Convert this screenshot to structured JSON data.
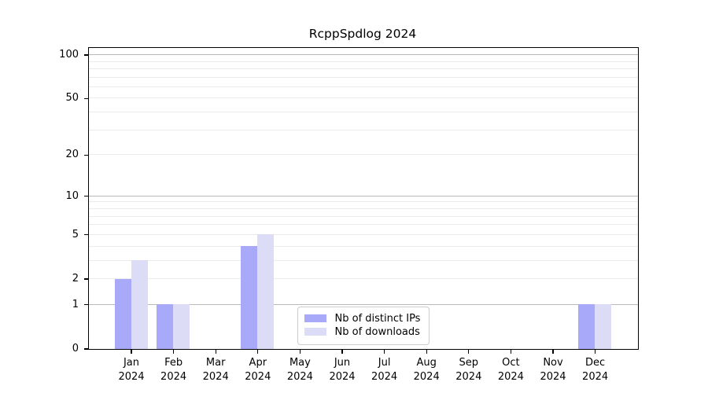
{
  "title": "RcppSpdlog 2024",
  "axes": {
    "y_tick_labels": [
      "100",
      "50",
      "20",
      "10",
      "5",
      "2",
      "1",
      "0"
    ],
    "x_tick_year": "2024"
  },
  "legend": {
    "position": "lower center",
    "items": [
      {
        "label": "Nb of distinct IPs",
        "color": "#a9a9f9"
      },
      {
        "label": "Nb of downloads",
        "color": "#dcdcf7"
      }
    ]
  },
  "chart_data": {
    "type": "bar",
    "title": "RcppSpdlog 2024",
    "categories": [
      "Jan 2024",
      "Feb 2024",
      "Mar 2024",
      "Apr 2024",
      "May 2024",
      "Jun 2024",
      "Jul 2024",
      "Aug 2024",
      "Sep 2024",
      "Oct 2024",
      "Nov 2024",
      "Dec 2024"
    ],
    "month_labels": [
      "Jan",
      "Feb",
      "Mar",
      "Apr",
      "May",
      "Jun",
      "Jul",
      "Aug",
      "Sep",
      "Oct",
      "Nov",
      "Dec"
    ],
    "year": "2024",
    "series": [
      {
        "name": "Nb of distinct IPs",
        "color": "#a9a9f9",
        "values": [
          2,
          1,
          0,
          4,
          0,
          0,
          0,
          0,
          0,
          0,
          0,
          1
        ]
      },
      {
        "name": "Nb of downloads",
        "color": "#dcdcf7",
        "values": [
          3,
          1,
          0,
          5,
          0,
          0,
          0,
          0,
          0,
          0,
          0,
          1
        ]
      }
    ],
    "xlabel": "",
    "ylabel": "",
    "yscale": "log1p",
    "ylim": [
      0,
      112
    ],
    "yticks": [
      100,
      50,
      20,
      10,
      5,
      2,
      1,
      0
    ],
    "grid": {
      "major_values": [
        1,
        10,
        100
      ],
      "minor_values": [
        2,
        3,
        4,
        5,
        6,
        7,
        8,
        9,
        20,
        30,
        40,
        50,
        60,
        70,
        80,
        90
      ]
    },
    "legend_position": "lower center"
  }
}
